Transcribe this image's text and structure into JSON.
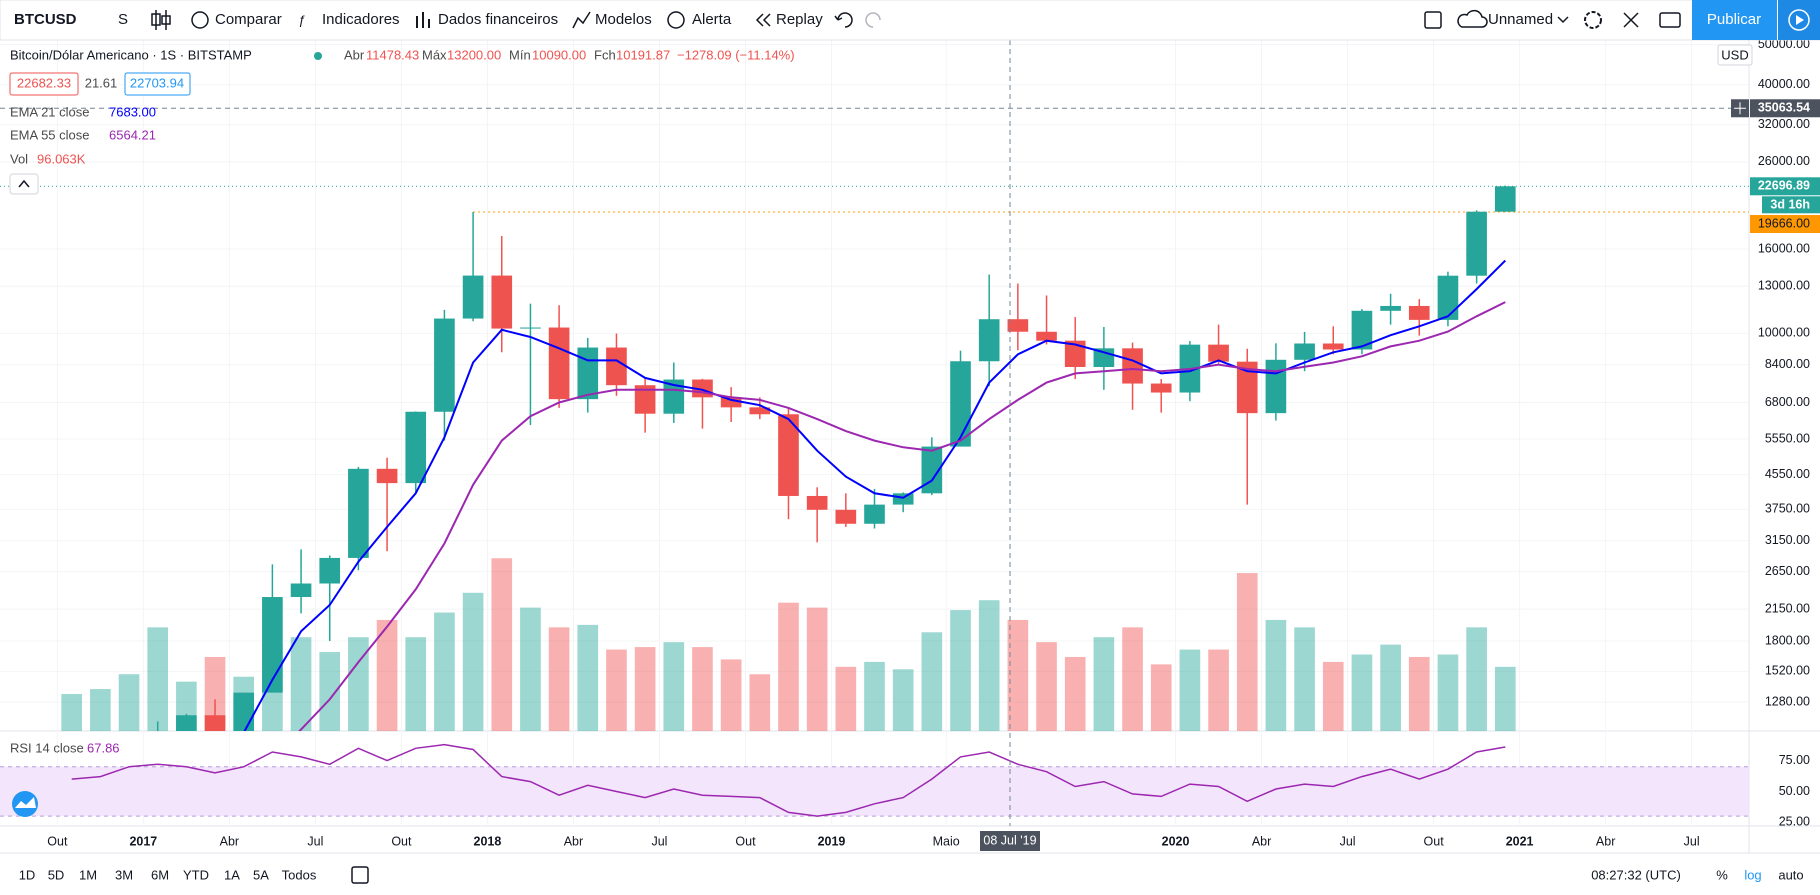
{
  "toolbar": {
    "symbol": "BTCUSD",
    "interval": "S",
    "items": [
      "Comparar",
      "Indicadores",
      "Dados financeiros",
      "Modelos",
      "Alerta",
      "Replay"
    ],
    "layout_name": "Unnamed",
    "publish": "Publicar"
  },
  "legend": {
    "title": "Bitcoin/Dólar Americano · 1S · BITSTAMP",
    "ohlc": [
      {
        "label": "Abr",
        "value": "11478.43"
      },
      {
        "label": "Máx",
        "value": "13200.00"
      },
      {
        "label": "Mín",
        "value": "10090.00"
      },
      {
        "label": "Fch",
        "value": "10191.87"
      }
    ],
    "change": "−1278.09 (−11.14%)",
    "bid": "22682.33",
    "spread": "21.61",
    "ask": "22703.94"
  },
  "chart_data": {
    "type": "candlestick",
    "log_scale": true,
    "grid": true,
    "currency": "USD",
    "x": [
      "2016-10",
      "2016-11",
      "2016-12",
      "2017-01",
      "2017-02",
      "2017-03",
      "2017-04",
      "2017-05",
      "2017-06",
      "2017-07",
      "2017-08",
      "2017-09",
      "2017-10",
      "2017-11",
      "2017-12",
      "2018-01",
      "2018-02",
      "2018-03",
      "2018-04",
      "2018-05",
      "2018-06",
      "2018-07",
      "2018-08",
      "2018-09",
      "2018-10",
      "2018-11",
      "2018-12",
      "2019-01",
      "2019-02",
      "2019-03",
      "2019-04",
      "2019-05",
      "2019-06",
      "2019-07",
      "2019-08",
      "2019-09",
      "2019-10",
      "2019-11",
      "2019-12",
      "2020-01",
      "2020-02",
      "2020-03",
      "2020-04",
      "2020-05",
      "2020-06",
      "2020-07",
      "2020-08",
      "2020-09",
      "2020-10",
      "2020-11",
      "2020-12"
    ],
    "candles": {
      "up_color": "#26a69a",
      "down_color": "#ef5350",
      "open": [
        610,
        700,
        745,
        965,
        970,
        1190,
        1080,
        1350,
        2300,
        2480,
        2860,
        4700,
        4340,
        6460,
        10860,
        13800,
        10270,
        10330,
        6930,
        9240,
        7490,
        6390,
        7730,
        7000,
        6620,
        6370,
        4040,
        3740,
        3460,
        3850,
        4100,
        5320,
        8560,
        10820,
        10090,
        9600,
        8290,
        9200,
        7560,
        7190,
        9390,
        8540,
        6410,
        8630,
        9450,
        9140,
        11340,
        11650,
        10780,
        13790,
        19700
      ],
      "high": [
        740,
        755,
        980,
        1150,
        1200,
        1300,
        1350,
        2760,
        3000,
        2900,
        4750,
        5000,
        6470,
        11400,
        19666,
        17200,
        11800,
        11700,
        9750,
        9990,
        7760,
        8500,
        7760,
        7410,
        7000,
        6600,
        4240,
        4100,
        4200,
        4120,
        5600,
        9080,
        13880,
        13200,
        12350,
        10950,
        10360,
        9500,
        7750,
        9580,
        10500,
        9180,
        9460,
        10080,
        10400,
        11450,
        12470,
        12100,
        14100,
        19850,
        22770
      ],
      "low": [
        605,
        690,
        740,
        750,
        920,
        890,
        1080,
        1350,
        2100,
        1800,
        2670,
        2970,
        4110,
        5500,
        10700,
        9000,
        6000,
        6600,
        6430,
        7060,
        5750,
        6070,
        5880,
        6100,
        6200,
        3550,
        3120,
        3400,
        3370,
        3690,
        4060,
        5320,
        7450,
        9100,
        9400,
        7750,
        7300,
        6530,
        6430,
        6850,
        8450,
        3850,
        6150,
        8100,
        8900,
        8900,
        10500,
        9880,
        10400,
        13200,
        19700
      ],
      "close": [
        700,
        745,
        965,
        970,
        1190,
        1080,
        1350,
        2300,
        2480,
        2860,
        4700,
        4340,
        6460,
        10860,
        13800,
        10270,
        10330,
        6930,
        9240,
        7490,
        6390,
        7730,
        7000,
        6620,
        6370,
        4040,
        3740,
        3460,
        3850,
        4100,
        5320,
        8560,
        10820,
        10090,
        9600,
        8290,
        9200,
        7560,
        7190,
        9390,
        8540,
        6410,
        8630,
        9450,
        9140,
        11340,
        11650,
        10780,
        13790,
        19700,
        22696.89
      ]
    },
    "overlays": [
      {
        "name": "EMA 21 close",
        "legend_value": "7683.00",
        "color": "#0000ff",
        "values": [
          640,
          670,
          730,
          800,
          880,
          950,
          1080,
          1450,
          1900,
          2200,
          2800,
          3400,
          4100,
          5600,
          8500,
          10200,
          9800,
          9200,
          8600,
          8600,
          7800,
          7500,
          7300,
          6900,
          6700,
          6200,
          5200,
          4500,
          4100,
          4000,
          4400,
          5600,
          7600,
          8900,
          9600,
          9400,
          9000,
          8600,
          8000,
          8100,
          8600,
          8100,
          8000,
          8500,
          9000,
          9300,
          9900,
          10400,
          11000,
          12800,
          15000
        ]
      },
      {
        "name": "EMA 55 close",
        "legend_value": "6564.21",
        "color": "#9c27b0",
        "values": [
          560,
          590,
          620,
          660,
          700,
          750,
          800,
          930,
          1100,
          1300,
          1600,
          1950,
          2400,
          3100,
          4300,
          5500,
          6300,
          6800,
          7100,
          7300,
          7300,
          7300,
          7200,
          7000,
          6900,
          6600,
          6200,
          5800,
          5500,
          5300,
          5200,
          5500,
          6200,
          6900,
          7600,
          8000,
          8100,
          8200,
          8100,
          8200,
          8400,
          8200,
          8100,
          8300,
          8500,
          8800,
          9300,
          9600,
          10100,
          11000,
          11900
        ]
      }
    ],
    "volume": {
      "name": "Vol",
      "legend_value": "96.063K",
      "max": 700,
      "values": [
        150,
        170,
        230,
        420,
        200,
        300,
        220,
        350,
        380,
        320,
        380,
        450,
        380,
        480,
        560,
        700,
        500,
        420,
        430,
        330,
        340,
        360,
        340,
        290,
        230,
        520,
        500,
        260,
        280,
        250,
        400,
        490,
        530,
        450,
        360,
        300,
        380,
        420,
        270,
        330,
        330,
        640,
        450,
        420,
        280,
        310,
        350,
        300,
        310,
        420,
        260
      ]
    },
    "rsi": {
      "name": "RSI 14 close",
      "legend_value": "67.86",
      "color": "#9c27b0",
      "band": [
        30,
        70
      ],
      "ylim": [
        22,
        99
      ],
      "yticks": [
        {
          "value": 25,
          "label": "25.00"
        },
        {
          "value": 50,
          "label": "50.00"
        },
        {
          "value": 75,
          "label": "75.00"
        }
      ],
      "values": [
        60,
        62,
        70,
        72,
        70,
        65,
        70,
        82,
        78,
        72,
        85,
        75,
        85,
        88,
        84,
        62,
        58,
        47,
        55,
        50,
        45,
        52,
        47,
        46,
        45,
        33,
        30,
        33,
        40,
        45,
        60,
        78,
        82,
        72,
        66,
        54,
        58,
        48,
        46,
        56,
        54,
        42,
        52,
        56,
        54,
        62,
        68,
        60,
        68,
        82,
        86
      ]
    },
    "ylim": [
      1090,
      51300
    ],
    "yticks": [
      {
        "value": 1280,
        "label": "1280.00"
      },
      {
        "value": 1520,
        "label": "1520.00"
      },
      {
        "value": 1800,
        "label": "1800.00"
      },
      {
        "value": 2150,
        "label": "2150.00"
      },
      {
        "value": 2650,
        "label": "2650.00"
      },
      {
        "value": 3150,
        "label": "3150.00"
      },
      {
        "value": 3750,
        "label": "3750.00"
      },
      {
        "value": 4550,
        "label": "4550.00"
      },
      {
        "value": 5550,
        "label": "5550.00"
      },
      {
        "value": 6800,
        "label": "6800.00"
      },
      {
        "value": 8400,
        "label": "8400.00"
      },
      {
        "value": 10000,
        "label": "10000.00"
      },
      {
        "value": 13000,
        "label": "13000.00"
      },
      {
        "value": 16000,
        "label": "16000.00"
      },
      {
        "value": 26000,
        "label": "26000.00"
      },
      {
        "value": 32000,
        "label": "32000.00"
      },
      {
        "value": 40000,
        "label": "40000.00"
      },
      {
        "value": 50000,
        "label": "50000.00"
      }
    ],
    "xlim": [
      "2016-08",
      "2021-09"
    ],
    "xticks": [
      {
        "value": "2016-10",
        "label": "Out"
      },
      {
        "value": "2017-01",
        "label": "2017"
      },
      {
        "value": "2017-04",
        "label": "Abr"
      },
      {
        "value": "2017-07",
        "label": "Jul"
      },
      {
        "value": "2017-10",
        "label": "Out"
      },
      {
        "value": "2018-01",
        "label": "2018"
      },
      {
        "value": "2018-04",
        "label": "Abr"
      },
      {
        "value": "2018-07",
        "label": "Jul"
      },
      {
        "value": "2018-10",
        "label": "Out"
      },
      {
        "value": "2019-01",
        "label": "2019"
      },
      {
        "value": "2019-05",
        "label": "Maio"
      },
      {
        "value": "2020-01",
        "label": "2020"
      },
      {
        "value": "2020-04",
        "label": "Abr"
      },
      {
        "value": "2020-07",
        "label": "Jul"
      },
      {
        "value": "2020-10",
        "label": "Out"
      },
      {
        "value": "2021-01",
        "label": "2021"
      },
      {
        "value": "2021-04",
        "label": "Abr"
      },
      {
        "value": "2021-07",
        "label": "Jul"
      }
    ],
    "last_price": 22696.89,
    "countdown": "3d 16h",
    "high_line": {
      "value": 19666,
      "label": "19666.00"
    },
    "crosshair": {
      "x": "2019-07-08",
      "x_label": "08 Jul '19",
      "y": 35063.54
    }
  },
  "bottom_bar": {
    "ranges": [
      "1D",
      "5D",
      "1M",
      "3M",
      "6M",
      "YTD",
      "1A",
      "5A",
      "Todos"
    ],
    "clock": "08:27:32 (UTC)",
    "percent": "%",
    "log": "log",
    "auto": "auto"
  }
}
